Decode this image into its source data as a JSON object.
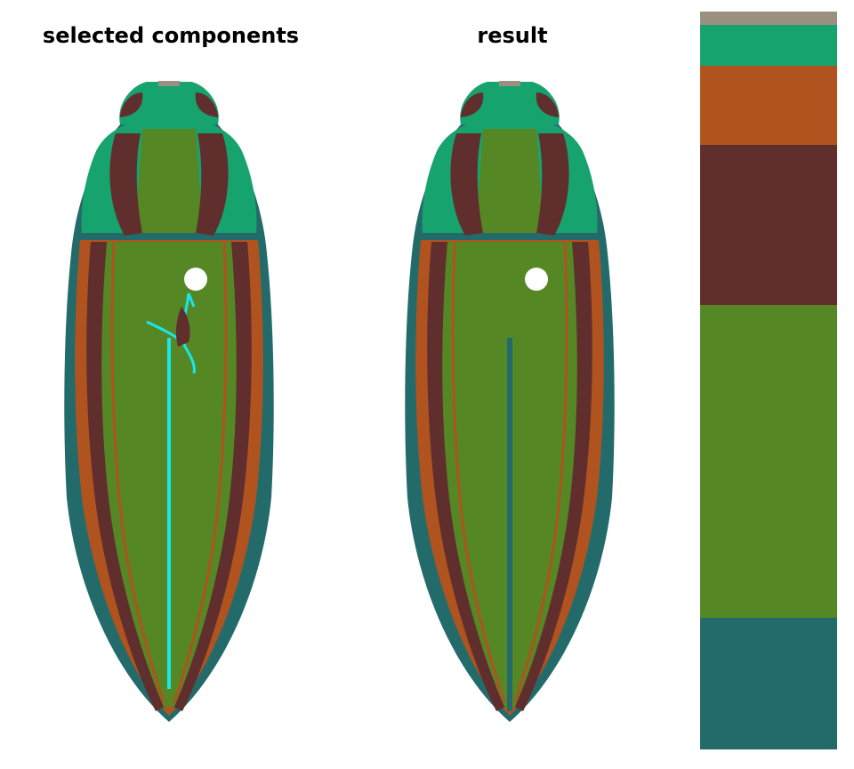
{
  "panels": {
    "left": {
      "title": "selected components"
    },
    "right": {
      "title": "result"
    }
  },
  "colors": {
    "background": "#ffffff",
    "gray": "#9a8f80",
    "emerald": "#17a36e",
    "copper": "#b0531f",
    "maroon": "#612e2e",
    "olive": "#558725",
    "teal": "#236b6b",
    "highlight": "#18e8ee",
    "hole": "#ffffff"
  },
  "palette_swatches": [
    {
      "name": "gray",
      "color": "#9a8f80",
      "proportion": 0.018
    },
    {
      "name": "emerald",
      "color": "#17a36e",
      "proportion": 0.055
    },
    {
      "name": "copper",
      "color": "#b0531f",
      "proportion": 0.108
    },
    {
      "name": "maroon",
      "color": "#612e2e",
      "proportion": 0.216
    },
    {
      "name": "olive",
      "color": "#558725",
      "proportion": 0.425
    },
    {
      "name": "teal",
      "color": "#236b6b",
      "proportion": 0.178
    }
  ]
}
